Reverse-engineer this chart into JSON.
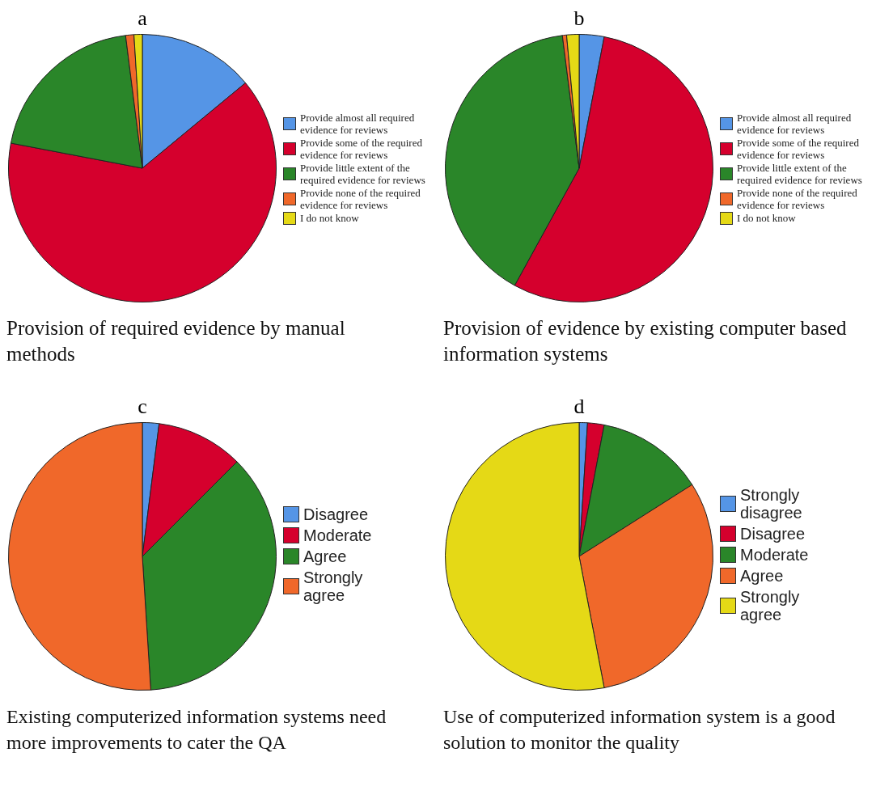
{
  "chart_data": [
    {
      "type": "pie",
      "title": "a",
      "categories": [
        "Provide almost all required evidence for reviews",
        "Provide some of the required evidence for reviews",
        "Provide little extent of the required evidence for reviews",
        "Provide none of the required evidence for reviews",
        "I do not know"
      ],
      "values": [
        14,
        64,
        20,
        1,
        1
      ],
      "colors": [
        "#5595e6",
        "#d5002d",
        "#2a8629",
        "#f0682a",
        "#e5d916"
      ],
      "legend": "right",
      "annotations": [
        "Provision of required evidence by manual methods"
      ]
    },
    {
      "type": "pie",
      "title": "b",
      "categories": [
        "Provide almost all required evidence for reviews",
        "Provide some of the required evidence for reviews",
        "Provide little extent of the required evidence for reviews",
        "Provide none of the required evidence for reviews",
        "I do not know"
      ],
      "values": [
        3,
        55,
        40,
        0.5,
        1.5
      ],
      "colors": [
        "#5595e6",
        "#d5002d",
        "#2a8629",
        "#f0682a",
        "#e5d916"
      ],
      "legend": "right",
      "annotations": [
        "Provision of evidence by existing computer based information systems"
      ]
    },
    {
      "type": "pie",
      "title": "c",
      "categories": [
        "Disagree",
        "Moderate",
        "Agree",
        "Strongly agree"
      ],
      "values": [
        2,
        10.5,
        36.5,
        51
      ],
      "colors": [
        "#5595e6",
        "#d5002d",
        "#2a8629",
        "#f0682a"
      ],
      "legend": "right",
      "annotations": [
        "Existing computerized information systems need more improvements to cater the QA"
      ]
    },
    {
      "type": "pie",
      "title": "d",
      "categories": [
        "Strongly disagree",
        "Disagree",
        "Moderate",
        "Agree",
        "Strongly agree"
      ],
      "values": [
        1,
        2,
        13,
        31,
        53
      ],
      "colors": [
        "#5595e6",
        "#d5002d",
        "#2a8629",
        "#f0682a",
        "#e5d916"
      ],
      "legend": "right",
      "annotations": [
        "Use of computerized information system is a good solution to monitor the quality"
      ]
    }
  ]
}
